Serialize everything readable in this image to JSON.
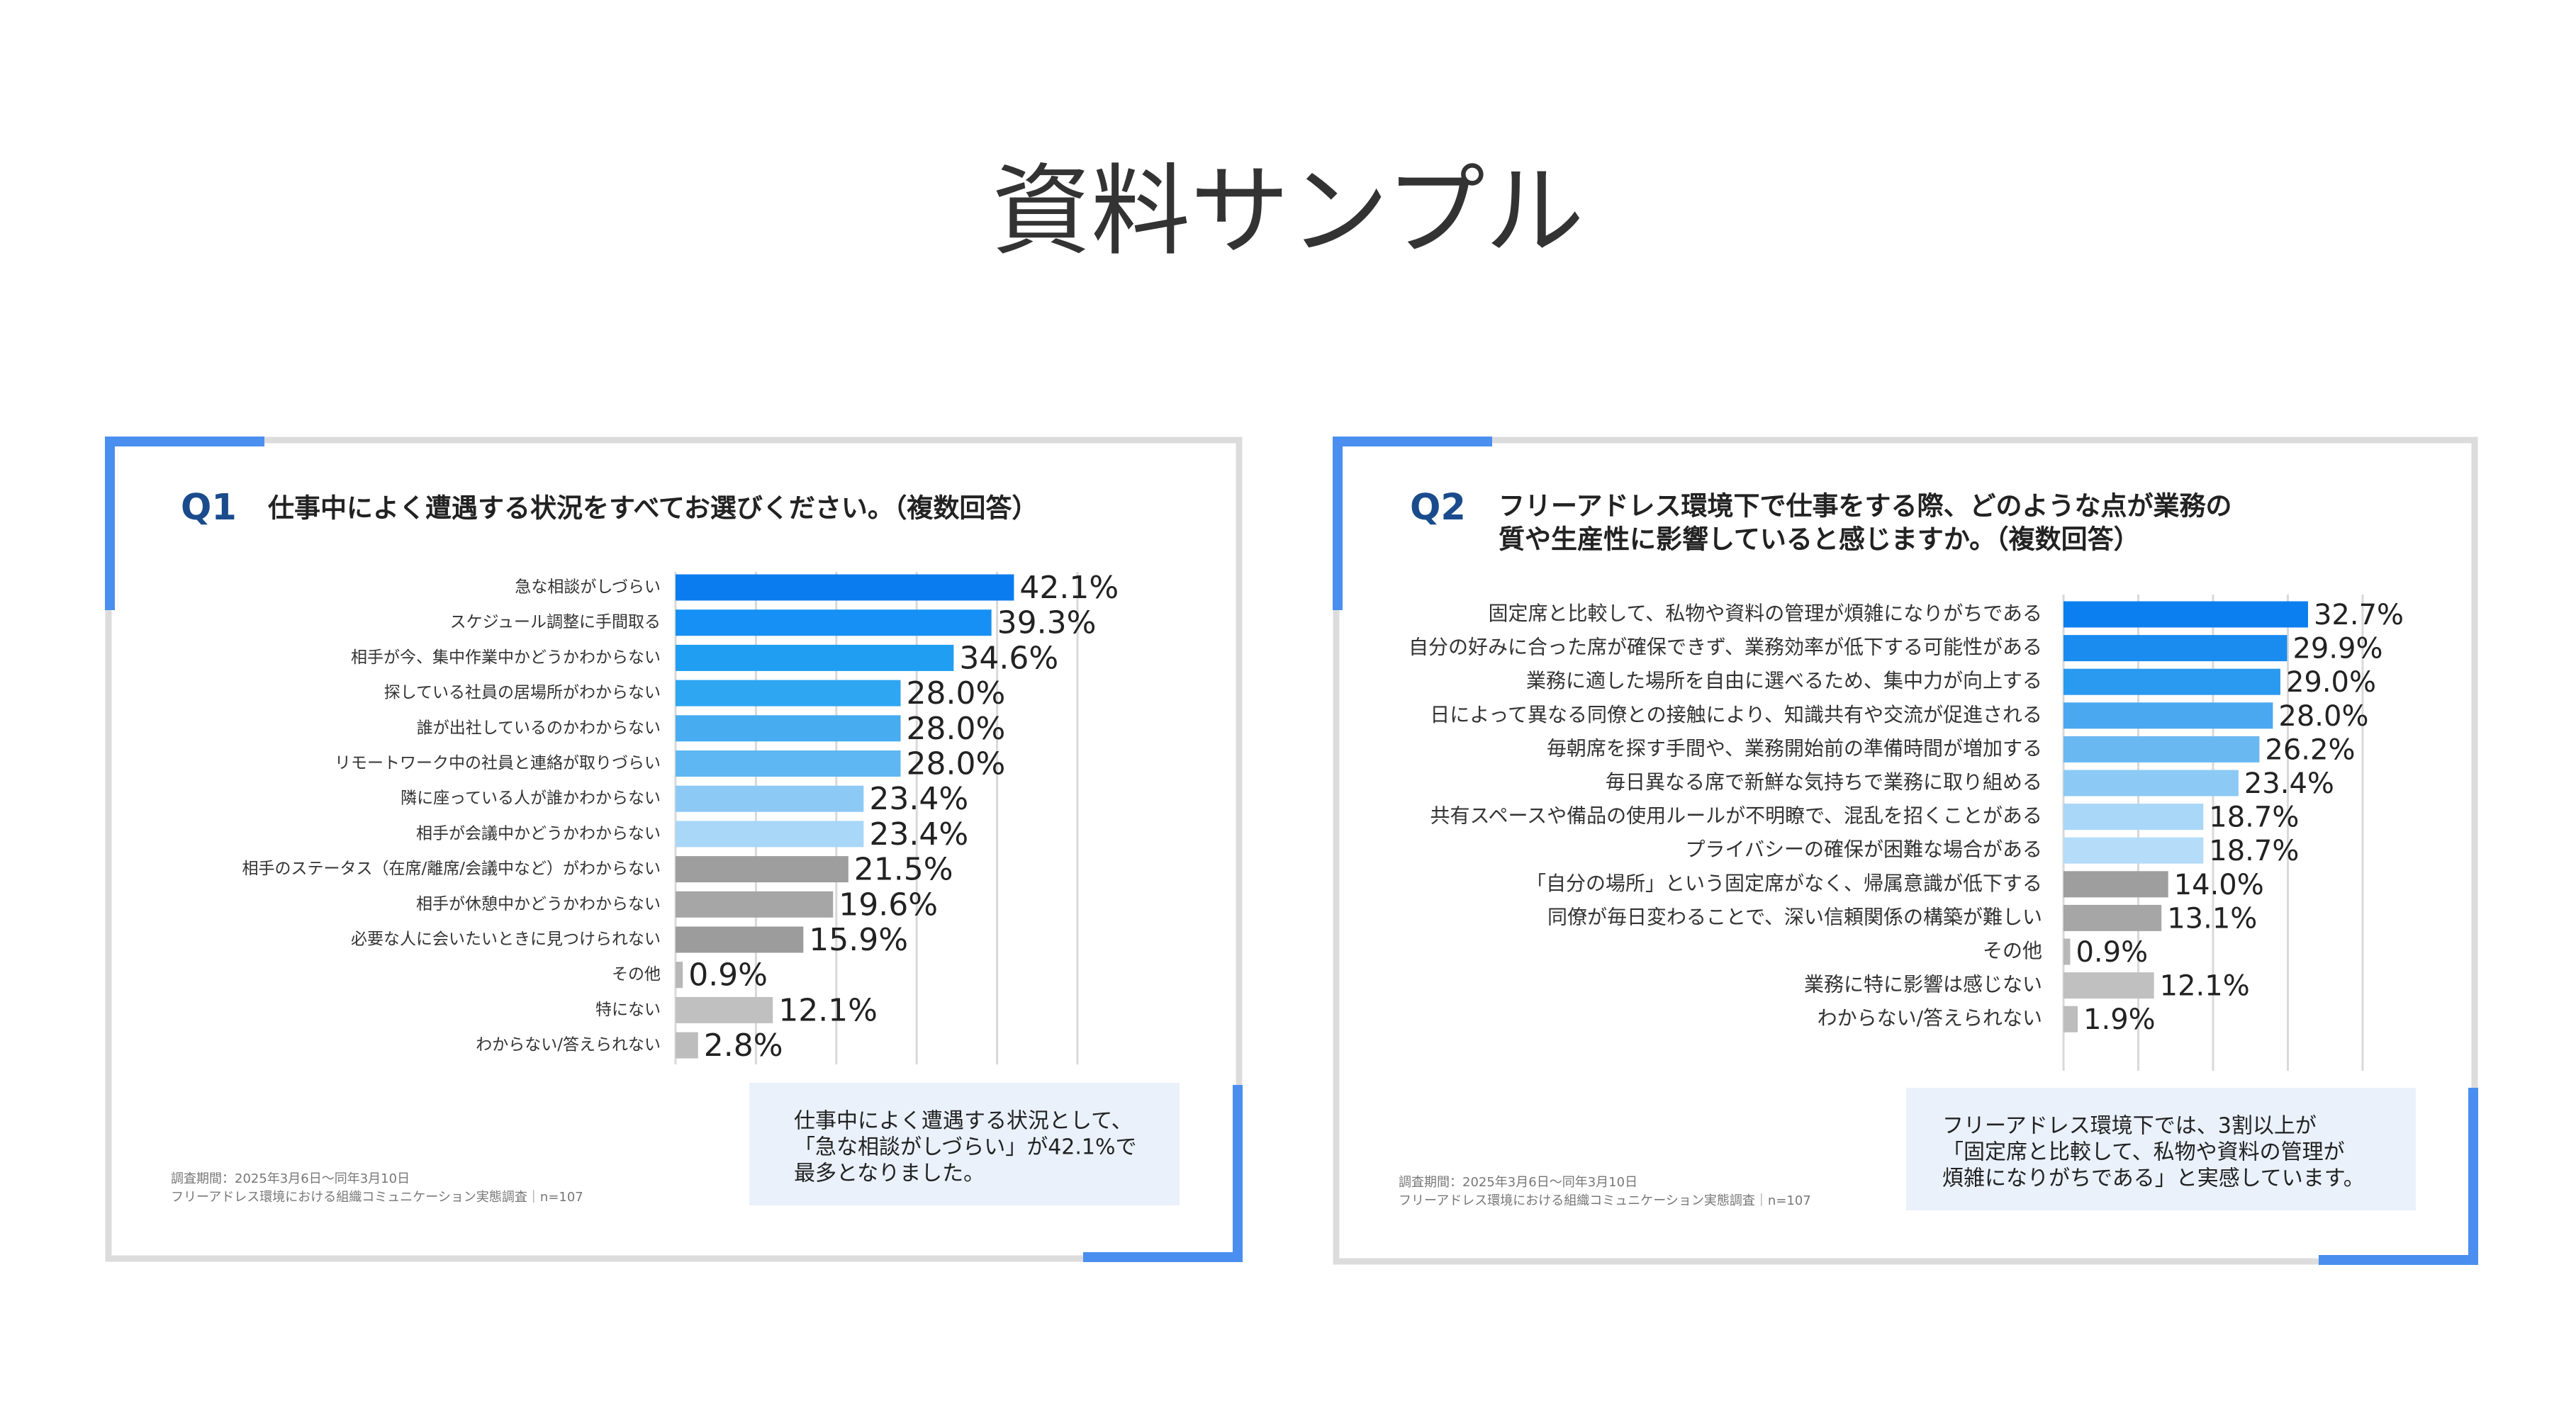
{
  "page_title": "資料サンプル",
  "chart_data": [
    {
      "type": "bar",
      "orientation": "horizontal",
      "label": "Q1",
      "title": [
        "仕事中によく遭遇する状況をすべてお選びください。（複数回答）"
      ],
      "categories": [
        "急な相談がしづらい",
        "スケジュール調整に手間取る",
        "相手が今、集中作業中かどうかわからない",
        "探している社員の居場所がわからない",
        "誰が出社しているのかわからない",
        "リモートワーク中の社員と連絡が取りづらい",
        "隣に座っている人が誰かわからない",
        "相手が会議中かどうかわからない",
        "相手のステータス（在席/離席/会議中など）がわからない",
        "相手が休憩中かどうかわからない",
        "必要な人に会いたいときに見つけられない",
        "その他",
        "特にない",
        "わからない/答えられない"
      ],
      "values": [
        42.1,
        39.3,
        34.6,
        28.0,
        28.0,
        28.0,
        23.4,
        23.4,
        21.5,
        19.6,
        15.9,
        0.9,
        12.1,
        2.8
      ],
      "value_labels": [
        "42.1%",
        "39.3%",
        "34.6%",
        "28.0%",
        "28.0%",
        "28.0%",
        "23.4%",
        "23.4%",
        "21.5%",
        "19.6%",
        "15.9%",
        "0.9%",
        "12.1%",
        "2.8%"
      ],
      "colors": [
        "#0b7cf0",
        "#1690f5",
        "#209ef2",
        "#2ea6f2",
        "#47adf0",
        "#5eb7f2",
        "#8ccaf5",
        "#a8d7f8",
        "#9e9e9e",
        "#a6a6a6",
        "#9c9c9c",
        "#b8b8b8",
        "#c0c0c0",
        "#bdbdbd"
      ],
      "xlim": [
        0,
        50
      ],
      "xticks": [
        0,
        10,
        20,
        30,
        40,
        50
      ],
      "grid": true,
      "note": [
        "仕事中によく遭遇する状況として、",
        "「急な相談がしづらい」が42.1%で",
        "最多となりました。"
      ],
      "source": [
        "調査期間：2025年3月6日〜同年3月10日",
        "フリーアドレス環境における組織コミュニケーション実態調査｜n=107"
      ]
    },
    {
      "type": "bar",
      "orientation": "horizontal",
      "label": "Q2",
      "title": [
        "フリーアドレス環境下で仕事をする際、どのような点が業務の",
        "質や生産性に影響していると感じますか。（複数回答）"
      ],
      "categories": [
        "固定席と比較して、私物や資料の管理が煩雑になりがちである",
        "自分の好みに合った席が確保できず、業務効率が低下する可能性がある",
        "業務に適した場所を自由に選べるため、集中力が向上する",
        "日によって異なる同僚との接触により、知識共有や交流が促進される",
        "毎朝席を探す手間や、業務開始前の準備時間が増加する",
        "毎日異なる席で新鮮な気持ちで業務に取り組める",
        "共有スペースや備品の使用ルールが不明瞭で、混乱を招くことがある",
        "プライバシーの確保が困難な場合がある",
        "「自分の場所」という固定席がなく、帰属意識が低下する",
        "同僚が毎日変わることで、深い信頼関係の構築が難しい",
        "その他",
        "業務に特に影響は感じない",
        "わからない/答えられない"
      ],
      "values": [
        32.7,
        29.9,
        29.0,
        28.0,
        26.2,
        23.4,
        18.7,
        18.7,
        14.0,
        13.1,
        0.9,
        12.1,
        1.9
      ],
      "value_labels": [
        "32.7%",
        "29.9%",
        "29.0%",
        "28.0%",
        "26.2%",
        "23.4%",
        "18.7%",
        "18.7%",
        "14.0%",
        "13.1%",
        "0.9%",
        "12.1%",
        "1.9%"
      ],
      "colors": [
        "#0b7ff0",
        "#1a8cf0",
        "#2a99f0",
        "#4aa8f0",
        "#6ab8f2",
        "#8ccaf5",
        "#a9d7f8",
        "#b5dcf8",
        "#9e9e9e",
        "#a6a6a6",
        "#b8b8b8",
        "#c0c0c0",
        "#bdbdbd"
      ],
      "xlim": [
        0,
        40
      ],
      "xticks": [
        0,
        10,
        20,
        30,
        40
      ],
      "grid": true,
      "note": [
        "フリーアドレス環境下では、3割以上が",
        "「固定席と比較して、私物や資料の管理が",
        "煩雑になりがちである」と実感しています。"
      ],
      "source": [
        "調査期間：2025年3月6日〜同年3月10日",
        "フリーアドレス環境における組織コミュニケーション実態調査｜n=107"
      ]
    }
  ]
}
